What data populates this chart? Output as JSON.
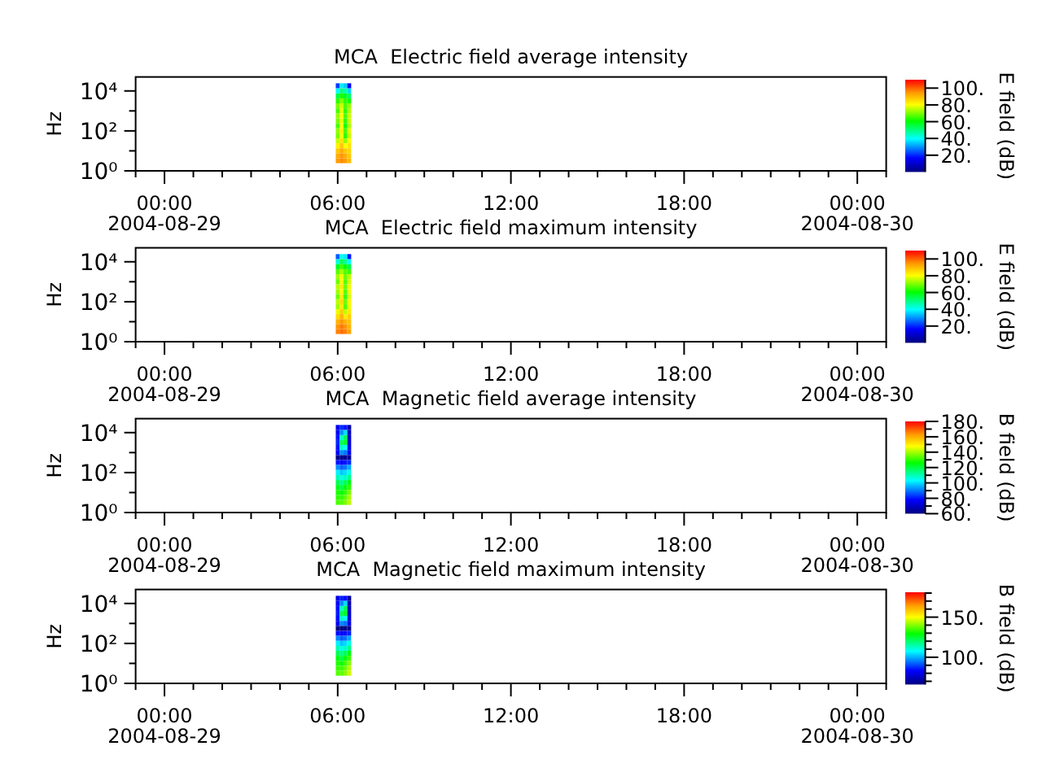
{
  "chart_data": [
    {
      "type": "scatter",
      "title": "MCA  Electric field average intensity",
      "ylabel": "Hz",
      "clabel": "E field (dB)",
      "marker": "square",
      "log": "y",
      "x": [
        "2004-08-29T06:00",
        "2004-08-29T06:08",
        "2004-08-29T06:16",
        "2004-08-29T06:24",
        "2004-08-29T06:00",
        "2004-08-29T06:08",
        "2004-08-29T06:16",
        "2004-08-29T06:24",
        "2004-08-29T06:00",
        "2004-08-29T06:08",
        "2004-08-29T06:16",
        "2004-08-29T06:24",
        "2004-08-29T06:00",
        "2004-08-29T06:08",
        "2004-08-29T06:16",
        "2004-08-29T06:24",
        "2004-08-29T06:00",
        "2004-08-29T06:08",
        "2004-08-29T06:16",
        "2004-08-29T06:24",
        "2004-08-29T06:00",
        "2004-08-29T06:08",
        "2004-08-29T06:16",
        "2004-08-29T06:24",
        "2004-08-29T06:00",
        "2004-08-29T06:08",
        "2004-08-29T06:16",
        "2004-08-29T06:24",
        "2004-08-29T06:00",
        "2004-08-29T06:08",
        "2004-08-29T06:16",
        "2004-08-29T06:24",
        "2004-08-29T06:00",
        "2004-08-29T06:08",
        "2004-08-29T06:16",
        "2004-08-29T06:24",
        "2004-08-29T06:00",
        "2004-08-29T06:08",
        "2004-08-29T06:16",
        "2004-08-29T06:24",
        "2004-08-29T06:00",
        "2004-08-29T06:08",
        "2004-08-29T06:16",
        "2004-08-29T06:24",
        "2004-08-29T06:00",
        "2004-08-29T06:08",
        "2004-08-29T06:16",
        "2004-08-29T06:24",
        "2004-08-29T06:00",
        "2004-08-29T06:08",
        "2004-08-29T06:16",
        "2004-08-29T06:24",
        "2004-08-29T06:00",
        "2004-08-29T06:08",
        "2004-08-29T06:16",
        "2004-08-29T06:24",
        "2004-08-29T06:00",
        "2004-08-29T06:08",
        "2004-08-29T06:16",
        "2004-08-29T06:24",
        "2004-08-29T06:00",
        "2004-08-29T06:08",
        "2004-08-29T06:16",
        "2004-08-29T06:24"
      ],
      "values": [
        18000,
        18000,
        18000,
        18000,
        10000,
        10000,
        10000,
        10000,
        5600,
        5600,
        5600,
        5600,
        3200,
        3200,
        3200,
        3200,
        1800,
        1800,
        1800,
        1800,
        1000,
        1000,
        1000,
        1000,
        560,
        560,
        560,
        560,
        320,
        320,
        320,
        320,
        180,
        180,
        180,
        180,
        100,
        100,
        100,
        100,
        56,
        56,
        56,
        56,
        32,
        32,
        32,
        32,
        18,
        18,
        18,
        18,
        10,
        10,
        10,
        10,
        5.6,
        5.6,
        5.6,
        5.6,
        3.2,
        3.2,
        3.2,
        3.2
      ],
      "cvalues": [
        22,
        38,
        35,
        15,
        40,
        50,
        46,
        36,
        55,
        62,
        58,
        52,
        64,
        70,
        64,
        62,
        70,
        76,
        66,
        72,
        66,
        78,
        64,
        74,
        72,
        80,
        66,
        76,
        70,
        78,
        64,
        76,
        66,
        80,
        62,
        74,
        72,
        82,
        66,
        78,
        70,
        80,
        64,
        76,
        76,
        84,
        72,
        80,
        82,
        88,
        80,
        84,
        88,
        92,
        88,
        86,
        92,
        95,
        92,
        88,
        94,
        96,
        94,
        90
      ],
      "xlim": [
        "2004-08-28T23:00",
        "2004-08-30T01:00"
      ],
      "xticks": [
        {
          "value": "2004-08-28T23:00",
          "label": null
        },
        {
          "value": "2004-08-29T00:00",
          "label": "00:00\n2004-08-29"
        },
        {
          "value": "2004-08-29T01:00",
          "label": null
        },
        {
          "value": "2004-08-29T02:00",
          "label": null
        },
        {
          "value": "2004-08-29T03:00",
          "label": null
        },
        {
          "value": "2004-08-29T04:00",
          "label": null
        },
        {
          "value": "2004-08-29T05:00",
          "label": null
        },
        {
          "value": "2004-08-29T06:00",
          "label": "06:00"
        },
        {
          "value": "2004-08-29T07:00",
          "label": null
        },
        {
          "value": "2004-08-29T08:00",
          "label": null
        },
        {
          "value": "2004-08-29T09:00",
          "label": null
        },
        {
          "value": "2004-08-29T10:00",
          "label": null
        },
        {
          "value": "2004-08-29T11:00",
          "label": null
        },
        {
          "value": "2004-08-29T12:00",
          "label": "12:00"
        },
        {
          "value": "2004-08-29T13:00",
          "label": null
        },
        {
          "value": "2004-08-29T14:00",
          "label": null
        },
        {
          "value": "2004-08-29T15:00",
          "label": null
        },
        {
          "value": "2004-08-29T16:00",
          "label": null
        },
        {
          "value": "2004-08-29T17:00",
          "label": null
        },
        {
          "value": "2004-08-29T18:00",
          "label": "18:00"
        },
        {
          "value": "2004-08-29T19:00",
          "label": null
        },
        {
          "value": "2004-08-29T20:00",
          "label": null
        },
        {
          "value": "2004-08-29T21:00",
          "label": null
        },
        {
          "value": "2004-08-29T22:00",
          "label": null
        },
        {
          "value": "2004-08-29T23:00",
          "label": null
        },
        {
          "value": "2004-08-30T00:00",
          "label": "00:00\n2004-08-30"
        },
        {
          "value": "2004-08-30T01:00",
          "label": null
        }
      ],
      "ylim": [
        1,
        50000
      ],
      "yticks": [
        {
          "value": 1,
          "label": "10⁰"
        },
        {
          "value": 10,
          "label": null
        },
        {
          "value": 100,
          "label": "10²"
        },
        {
          "value": 1000,
          "label": null
        },
        {
          "value": 10000,
          "label": "10⁴"
        }
      ],
      "clim": [
        0,
        110
      ],
      "cticks": [
        {
          "value": 20,
          "label": "20."
        },
        {
          "value": 40,
          "label": "40."
        },
        {
          "value": 60,
          "label": "60."
        },
        {
          "value": 80,
          "label": "80."
        },
        {
          "value": 100,
          "label": "100."
        }
      ]
    },
    {
      "type": "scatter",
      "title": "MCA  Electric field maximum intensity",
      "ylabel": "Hz",
      "clabel": "E field (dB)",
      "marker": "square",
      "log": "y",
      "x": [
        "2004-08-29T06:00",
        "2004-08-29T06:08",
        "2004-08-29T06:16",
        "2004-08-29T06:24",
        "2004-08-29T06:00",
        "2004-08-29T06:08",
        "2004-08-29T06:16",
        "2004-08-29T06:24",
        "2004-08-29T06:00",
        "2004-08-29T06:08",
        "2004-08-29T06:16",
        "2004-08-29T06:24",
        "2004-08-29T06:00",
        "2004-08-29T06:08",
        "2004-08-29T06:16",
        "2004-08-29T06:24",
        "2004-08-29T06:00",
        "2004-08-29T06:08",
        "2004-08-29T06:16",
        "2004-08-29T06:24",
        "2004-08-29T06:00",
        "2004-08-29T06:08",
        "2004-08-29T06:16",
        "2004-08-29T06:24",
        "2004-08-29T06:00",
        "2004-08-29T06:08",
        "2004-08-29T06:16",
        "2004-08-29T06:24",
        "2004-08-29T06:00",
        "2004-08-29T06:08",
        "2004-08-29T06:16",
        "2004-08-29T06:24",
        "2004-08-29T06:00",
        "2004-08-29T06:08",
        "2004-08-29T06:16",
        "2004-08-29T06:24",
        "2004-08-29T06:00",
        "2004-08-29T06:08",
        "2004-08-29T06:16",
        "2004-08-29T06:24",
        "2004-08-29T06:00",
        "2004-08-29T06:08",
        "2004-08-29T06:16",
        "2004-08-29T06:24",
        "2004-08-29T06:00",
        "2004-08-29T06:08",
        "2004-08-29T06:16",
        "2004-08-29T06:24",
        "2004-08-29T06:00",
        "2004-08-29T06:08",
        "2004-08-29T06:16",
        "2004-08-29T06:24",
        "2004-08-29T06:00",
        "2004-08-29T06:08",
        "2004-08-29T06:16",
        "2004-08-29T06:24",
        "2004-08-29T06:00",
        "2004-08-29T06:08",
        "2004-08-29T06:16",
        "2004-08-29T06:24",
        "2004-08-29T06:00",
        "2004-08-29T06:08",
        "2004-08-29T06:16",
        "2004-08-29T06:24"
      ],
      "values": [
        18000,
        18000,
        18000,
        18000,
        10000,
        10000,
        10000,
        10000,
        5600,
        5600,
        5600,
        5600,
        3200,
        3200,
        3200,
        3200,
        1800,
        1800,
        1800,
        1800,
        1000,
        1000,
        1000,
        1000,
        560,
        560,
        560,
        560,
        320,
        320,
        320,
        320,
        180,
        180,
        180,
        180,
        100,
        100,
        100,
        100,
        56,
        56,
        56,
        56,
        32,
        32,
        32,
        32,
        18,
        18,
        18,
        18,
        10,
        10,
        10,
        10,
        5.6,
        5.6,
        5.6,
        5.6,
        3.2,
        3.2,
        3.2,
        3.2
      ],
      "cvalues": [
        25,
        41,
        38,
        18,
        43,
        53,
        49,
        39,
        58,
        65,
        61,
        55,
        67,
        73,
        67,
        65,
        73,
        79,
        69,
        75,
        69,
        81,
        67,
        77,
        75,
        83,
        69,
        79,
        73,
        81,
        67,
        79,
        69,
        83,
        65,
        77,
        75,
        85,
        69,
        81,
        73,
        83,
        67,
        79,
        79,
        87,
        75,
        83,
        85,
        91,
        83,
        87,
        91,
        95,
        91,
        89,
        95,
        98,
        95,
        91,
        97,
        99,
        97,
        93
      ],
      "xlim": [
        "2004-08-28T23:00",
        "2004-08-30T01:00"
      ],
      "xticks": [
        {
          "value": "2004-08-28T23:00",
          "label": null
        },
        {
          "value": "2004-08-29T00:00",
          "label": "00:00\n2004-08-29"
        },
        {
          "value": "2004-08-29T01:00",
          "label": null
        },
        {
          "value": "2004-08-29T02:00",
          "label": null
        },
        {
          "value": "2004-08-29T03:00",
          "label": null
        },
        {
          "value": "2004-08-29T04:00",
          "label": null
        },
        {
          "value": "2004-08-29T05:00",
          "label": null
        },
        {
          "value": "2004-08-29T06:00",
          "label": "06:00"
        },
        {
          "value": "2004-08-29T07:00",
          "label": null
        },
        {
          "value": "2004-08-29T08:00",
          "label": null
        },
        {
          "value": "2004-08-29T09:00",
          "label": null
        },
        {
          "value": "2004-08-29T10:00",
          "label": null
        },
        {
          "value": "2004-08-29T11:00",
          "label": null
        },
        {
          "value": "2004-08-29T12:00",
          "label": "12:00"
        },
        {
          "value": "2004-08-29T13:00",
          "label": null
        },
        {
          "value": "2004-08-29T14:00",
          "label": null
        },
        {
          "value": "2004-08-29T15:00",
          "label": null
        },
        {
          "value": "2004-08-29T16:00",
          "label": null
        },
        {
          "value": "2004-08-29T17:00",
          "label": null
        },
        {
          "value": "2004-08-29T18:00",
          "label": "18:00"
        },
        {
          "value": "2004-08-29T19:00",
          "label": null
        },
        {
          "value": "2004-08-29T20:00",
          "label": null
        },
        {
          "value": "2004-08-29T21:00",
          "label": null
        },
        {
          "value": "2004-08-29T22:00",
          "label": null
        },
        {
          "value": "2004-08-29T23:00",
          "label": null
        },
        {
          "value": "2004-08-30T00:00",
          "label": "00:00\n2004-08-30"
        },
        {
          "value": "2004-08-30T01:00",
          "label": null
        }
      ],
      "ylim": [
        1,
        50000
      ],
      "yticks": [
        {
          "value": 1,
          "label": "10⁰"
        },
        {
          "value": 10,
          "label": null
        },
        {
          "value": 100,
          "label": "10²"
        },
        {
          "value": 1000,
          "label": null
        },
        {
          "value": 10000,
          "label": "10⁴"
        }
      ],
      "clim": [
        0,
        110
      ],
      "cticks": [
        {
          "value": 20,
          "label": "20."
        },
        {
          "value": 40,
          "label": "40."
        },
        {
          "value": 60,
          "label": "60."
        },
        {
          "value": 80,
          "label": "80."
        },
        {
          "value": 100,
          "label": "100."
        }
      ]
    },
    {
      "type": "scatter",
      "title": "MCA  Magnetic field average intensity",
      "ylabel": "Hz",
      "clabel": "B field (dB)",
      "marker": "square",
      "log": "y",
      "x": [
        "2004-08-29T06:00",
        "2004-08-29T06:08",
        "2004-08-29T06:16",
        "2004-08-29T06:24",
        "2004-08-29T06:00",
        "2004-08-29T06:08",
        "2004-08-29T06:16",
        "2004-08-29T06:24",
        "2004-08-29T06:00",
        "2004-08-29T06:08",
        "2004-08-29T06:16",
        "2004-08-29T06:24",
        "2004-08-29T06:00",
        "2004-08-29T06:08",
        "2004-08-29T06:16",
        "2004-08-29T06:24",
        "2004-08-29T06:00",
        "2004-08-29T06:08",
        "2004-08-29T06:16",
        "2004-08-29T06:24",
        "2004-08-29T06:00",
        "2004-08-29T06:08",
        "2004-08-29T06:16",
        "2004-08-29T06:24",
        "2004-08-29T06:00",
        "2004-08-29T06:08",
        "2004-08-29T06:16",
        "2004-08-29T06:24",
        "2004-08-29T06:00",
        "2004-08-29T06:08",
        "2004-08-29T06:16",
        "2004-08-29T06:24",
        "2004-08-29T06:00",
        "2004-08-29T06:08",
        "2004-08-29T06:16",
        "2004-08-29T06:24",
        "2004-08-29T06:00",
        "2004-08-29T06:08",
        "2004-08-29T06:16",
        "2004-08-29T06:24",
        "2004-08-29T06:00",
        "2004-08-29T06:08",
        "2004-08-29T06:16",
        "2004-08-29T06:24",
        "2004-08-29T06:00",
        "2004-08-29T06:08",
        "2004-08-29T06:16",
        "2004-08-29T06:24",
        "2004-08-29T06:00",
        "2004-08-29T06:08",
        "2004-08-29T06:16",
        "2004-08-29T06:24",
        "2004-08-29T06:00",
        "2004-08-29T06:08",
        "2004-08-29T06:16",
        "2004-08-29T06:24",
        "2004-08-29T06:00",
        "2004-08-29T06:08",
        "2004-08-29T06:16",
        "2004-08-29T06:24",
        "2004-08-29T06:00",
        "2004-08-29T06:08",
        "2004-08-29T06:16",
        "2004-08-29T06:24"
      ],
      "values": [
        18000,
        18000,
        18000,
        18000,
        10000,
        10000,
        10000,
        10000,
        5600,
        5600,
        5600,
        5600,
        3200,
        3200,
        3200,
        3200,
        1800,
        1800,
        1800,
        1800,
        1000,
        1000,
        1000,
        1000,
        560,
        560,
        560,
        560,
        320,
        320,
        320,
        320,
        180,
        180,
        180,
        180,
        100,
        100,
        100,
        100,
        56,
        56,
        56,
        56,
        32,
        32,
        32,
        32,
        18,
        18,
        18,
        18,
        10,
        10,
        10,
        10,
        5.6,
        5.6,
        5.6,
        5.6,
        3.2,
        3.2,
        3.2,
        3.2
      ],
      "cvalues": [
        76,
        82,
        80,
        66,
        78,
        92,
        100,
        68,
        80,
        108,
        118,
        70,
        82,
        118,
        122,
        72,
        80,
        108,
        104,
        74,
        78,
        92,
        90,
        76,
        62,
        62,
        63,
        64,
        80,
        78,
        80,
        82,
        92,
        88,
        90,
        95,
        102,
        98,
        100,
        106,
        110,
        106,
        108,
        114,
        118,
        114,
        118,
        124,
        124,
        120,
        125,
        130,
        128,
        126,
        130,
        136,
        130,
        130,
        134,
        140,
        132,
        133,
        136,
        142
      ],
      "xlim": [
        "2004-08-28T23:00",
        "2004-08-30T01:00"
      ],
      "xticks": [
        {
          "value": "2004-08-28T23:00",
          "label": null
        },
        {
          "value": "2004-08-29T00:00",
          "label": "00:00\n2004-08-29"
        },
        {
          "value": "2004-08-29T01:00",
          "label": null
        },
        {
          "value": "2004-08-29T02:00",
          "label": null
        },
        {
          "value": "2004-08-29T03:00",
          "label": null
        },
        {
          "value": "2004-08-29T04:00",
          "label": null
        },
        {
          "value": "2004-08-29T05:00",
          "label": null
        },
        {
          "value": "2004-08-29T06:00",
          "label": "06:00"
        },
        {
          "value": "2004-08-29T07:00",
          "label": null
        },
        {
          "value": "2004-08-29T08:00",
          "label": null
        },
        {
          "value": "2004-08-29T09:00",
          "label": null
        },
        {
          "value": "2004-08-29T10:00",
          "label": null
        },
        {
          "value": "2004-08-29T11:00",
          "label": null
        },
        {
          "value": "2004-08-29T12:00",
          "label": "12:00"
        },
        {
          "value": "2004-08-29T13:00",
          "label": null
        },
        {
          "value": "2004-08-29T14:00",
          "label": null
        },
        {
          "value": "2004-08-29T15:00",
          "label": null
        },
        {
          "value": "2004-08-29T16:00",
          "label": null
        },
        {
          "value": "2004-08-29T17:00",
          "label": null
        },
        {
          "value": "2004-08-29T18:00",
          "label": "18:00"
        },
        {
          "value": "2004-08-29T19:00",
          "label": null
        },
        {
          "value": "2004-08-29T20:00",
          "label": null
        },
        {
          "value": "2004-08-29T21:00",
          "label": null
        },
        {
          "value": "2004-08-29T22:00",
          "label": null
        },
        {
          "value": "2004-08-29T23:00",
          "label": null
        },
        {
          "value": "2004-08-30T00:00",
          "label": "00:00\n2004-08-30"
        },
        {
          "value": "2004-08-30T01:00",
          "label": null
        }
      ],
      "ylim": [
        1,
        50000
      ],
      "yticks": [
        {
          "value": 1,
          "label": "10⁰"
        },
        {
          "value": 10,
          "label": null
        },
        {
          "value": 100,
          "label": "10²"
        },
        {
          "value": 1000,
          "label": null
        },
        {
          "value": 10000,
          "label": "10⁴"
        }
      ],
      "clim": [
        60,
        180
      ],
      "cticks": [
        {
          "value": 60,
          "label": "60."
        },
        {
          "value": 70,
          "label": null
        },
        {
          "value": 80,
          "label": "80."
        },
        {
          "value": 90,
          "label": null
        },
        {
          "value": 100,
          "label": "100."
        },
        {
          "value": 110,
          "label": null
        },
        {
          "value": 120,
          "label": "120."
        },
        {
          "value": 130,
          "label": null
        },
        {
          "value": 140,
          "label": "140."
        },
        {
          "value": 150,
          "label": null
        },
        {
          "value": 160,
          "label": "160."
        },
        {
          "value": 170,
          "label": null
        },
        {
          "value": 180,
          "label": "180."
        }
      ]
    },
    {
      "type": "scatter",
      "title": "MCA  Magnetic field maximum intensity",
      "ylabel": "Hz",
      "clabel": "B field (dB)",
      "marker": "square",
      "log": "y",
      "x": [
        "2004-08-29T06:00",
        "2004-08-29T06:08",
        "2004-08-29T06:16",
        "2004-08-29T06:24",
        "2004-08-29T06:00",
        "2004-08-29T06:08",
        "2004-08-29T06:16",
        "2004-08-29T06:24",
        "2004-08-29T06:00",
        "2004-08-29T06:08",
        "2004-08-29T06:16",
        "2004-08-29T06:24",
        "2004-08-29T06:00",
        "2004-08-29T06:08",
        "2004-08-29T06:16",
        "2004-08-29T06:24",
        "2004-08-29T06:00",
        "2004-08-29T06:08",
        "2004-08-29T06:16",
        "2004-08-29T06:24",
        "2004-08-29T06:00",
        "2004-08-29T06:08",
        "2004-08-29T06:16",
        "2004-08-29T06:24",
        "2004-08-29T06:00",
        "2004-08-29T06:08",
        "2004-08-29T06:16",
        "2004-08-29T06:24",
        "2004-08-29T06:00",
        "2004-08-29T06:08",
        "2004-08-29T06:16",
        "2004-08-29T06:24",
        "2004-08-29T06:00",
        "2004-08-29T06:08",
        "2004-08-29T06:16",
        "2004-08-29T06:24",
        "2004-08-29T06:00",
        "2004-08-29T06:08",
        "2004-08-29T06:16",
        "2004-08-29T06:24",
        "2004-08-29T06:00",
        "2004-08-29T06:08",
        "2004-08-29T06:16",
        "2004-08-29T06:24",
        "2004-08-29T06:00",
        "2004-08-29T06:08",
        "2004-08-29T06:16",
        "2004-08-29T06:24",
        "2004-08-29T06:00",
        "2004-08-29T06:08",
        "2004-08-29T06:16",
        "2004-08-29T06:24",
        "2004-08-29T06:00",
        "2004-08-29T06:08",
        "2004-08-29T06:16",
        "2004-08-29T06:24",
        "2004-08-29T06:00",
        "2004-08-29T06:08",
        "2004-08-29T06:16",
        "2004-08-29T06:24",
        "2004-08-29T06:00",
        "2004-08-29T06:08",
        "2004-08-29T06:16",
        "2004-08-29T06:24"
      ],
      "values": [
        18000,
        18000,
        18000,
        18000,
        10000,
        10000,
        10000,
        10000,
        5600,
        5600,
        5600,
        5600,
        3200,
        3200,
        3200,
        3200,
        1800,
        1800,
        1800,
        1800,
        1000,
        1000,
        1000,
        1000,
        560,
        560,
        560,
        560,
        320,
        320,
        320,
        320,
        180,
        180,
        180,
        180,
        100,
        100,
        100,
        100,
        56,
        56,
        56,
        56,
        32,
        32,
        32,
        32,
        18,
        18,
        18,
        18,
        10,
        10,
        10,
        10,
        5.6,
        5.6,
        5.6,
        5.6,
        3.2,
        3.2,
        3.2,
        3.2
      ],
      "cvalues": [
        80,
        86,
        84,
        70,
        82,
        96,
        104,
        72,
        84,
        112,
        122,
        74,
        86,
        122,
        126,
        76,
        84,
        112,
        108,
        78,
        82,
        96,
        94,
        80,
        66,
        66,
        67,
        68,
        84,
        82,
        84,
        86,
        96,
        92,
        94,
        99,
        106,
        102,
        104,
        110,
        114,
        110,
        112,
        118,
        122,
        118,
        122,
        128,
        128,
        124,
        129,
        134,
        132,
        130,
        134,
        140,
        134,
        134,
        138,
        144,
        136,
        137,
        140,
        146
      ],
      "xlim": [
        "2004-08-28T23:00",
        "2004-08-30T01:00"
      ],
      "xticks": [
        {
          "value": "2004-08-28T23:00",
          "label": null
        },
        {
          "value": "2004-08-29T00:00",
          "label": "00:00\n2004-08-29"
        },
        {
          "value": "2004-08-29T01:00",
          "label": null
        },
        {
          "value": "2004-08-29T02:00",
          "label": null
        },
        {
          "value": "2004-08-29T03:00",
          "label": null
        },
        {
          "value": "2004-08-29T04:00",
          "label": null
        },
        {
          "value": "2004-08-29T05:00",
          "label": null
        },
        {
          "value": "2004-08-29T06:00",
          "label": "06:00"
        },
        {
          "value": "2004-08-29T07:00",
          "label": null
        },
        {
          "value": "2004-08-29T08:00",
          "label": null
        },
        {
          "value": "2004-08-29T09:00",
          "label": null
        },
        {
          "value": "2004-08-29T10:00",
          "label": null
        },
        {
          "value": "2004-08-29T11:00",
          "label": null
        },
        {
          "value": "2004-08-29T12:00",
          "label": "12:00"
        },
        {
          "value": "2004-08-29T13:00",
          "label": null
        },
        {
          "value": "2004-08-29T14:00",
          "label": null
        },
        {
          "value": "2004-08-29T15:00",
          "label": null
        },
        {
          "value": "2004-08-29T16:00",
          "label": null
        },
        {
          "value": "2004-08-29T17:00",
          "label": null
        },
        {
          "value": "2004-08-29T18:00",
          "label": "18:00"
        },
        {
          "value": "2004-08-29T19:00",
          "label": null
        },
        {
          "value": "2004-08-29T20:00",
          "label": null
        },
        {
          "value": "2004-08-29T21:00",
          "label": null
        },
        {
          "value": "2004-08-29T22:00",
          "label": null
        },
        {
          "value": "2004-08-29T23:00",
          "label": null
        },
        {
          "value": "2004-08-30T00:00",
          "label": "00:00\n2004-08-30"
        },
        {
          "value": "2004-08-30T01:00",
          "label": null
        }
      ],
      "ylim": [
        1,
        50000
      ],
      "yticks": [
        {
          "value": 1,
          "label": "10⁰"
        },
        {
          "value": 10,
          "label": null
        },
        {
          "value": 100,
          "label": "10²"
        },
        {
          "value": 1000,
          "label": null
        },
        {
          "value": 10000,
          "label": "10⁴"
        }
      ],
      "clim": [
        66,
        181
      ],
      "cticks": [
        {
          "value": 70,
          "label": null
        },
        {
          "value": 80,
          "label": null
        },
        {
          "value": 90,
          "label": null
        },
        {
          "value": 100,
          "label": "100."
        },
        {
          "value": 110,
          "label": null
        },
        {
          "value": 120,
          "label": null
        },
        {
          "value": 130,
          "label": null
        },
        {
          "value": 140,
          "label": null
        },
        {
          "value": 150,
          "label": "150."
        },
        {
          "value": 160,
          "label": null
        },
        {
          "value": 170,
          "label": null
        },
        {
          "value": 180,
          "label": null
        }
      ]
    }
  ]
}
